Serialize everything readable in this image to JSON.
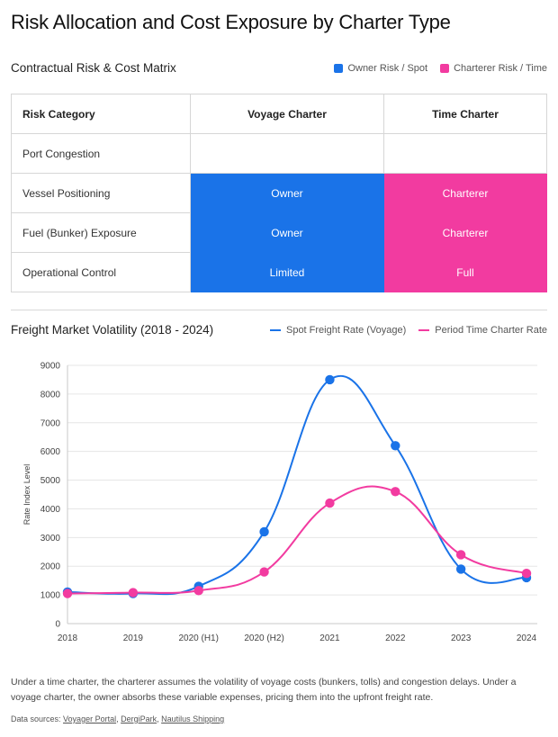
{
  "title": "Risk Allocation and Cost Exposure by Charter Type",
  "matrix": {
    "section_title": "Contractual Risk & Cost Matrix",
    "legend": [
      {
        "label": "Owner Risk / Spot",
        "color": "#1a73e8"
      },
      {
        "label": "Charterer Risk / Time",
        "color": "#f23ba0"
      }
    ],
    "headers": [
      "Risk Category",
      "Voyage Charter",
      "Time Charter"
    ],
    "rows": [
      {
        "category": "Port Congestion",
        "voyage": "",
        "time": "",
        "voyage_color": "#ffffff",
        "time_color": "#ffffff"
      },
      {
        "category": "Vessel Positioning",
        "voyage": "Owner",
        "time": "Charterer",
        "voyage_color": "#1a73e8",
        "time_color": "#f23ba0"
      },
      {
        "category": "Fuel (Bunker) Exposure",
        "voyage": "Owner",
        "time": "Charterer",
        "voyage_color": "#1a73e8",
        "time_color": "#f23ba0"
      },
      {
        "category": "Operational Control",
        "voyage": "Limited",
        "time": "Full",
        "voyage_color": "#1a73e8",
        "time_color": "#f23ba0"
      }
    ]
  },
  "chart_data": {
    "type": "line",
    "title": "Freight Market Volatility (2018 - 2024)",
    "ylabel": "Rate Index Level",
    "xlabel": "",
    "categories": [
      "2018",
      "2019",
      "2020 (H1)",
      "2020 (H2)",
      "2021",
      "2022",
      "2023",
      "2024"
    ],
    "ylim": [
      0,
      9000
    ],
    "yticks": [
      0,
      1000,
      2000,
      3000,
      4000,
      5000,
      6000,
      7000,
      8000,
      9000
    ],
    "grid": true,
    "legend_position": "top-right",
    "series": [
      {
        "name": "Spot Freight Rate (Voyage)",
        "color": "#1a73e8",
        "values": [
          1100,
          1050,
          1300,
          3200,
          8500,
          6200,
          1900,
          1600
        ]
      },
      {
        "name": "Period Time Charter Rate",
        "color": "#f23ba0",
        "values": [
          1050,
          1080,
          1150,
          1800,
          4200,
          4600,
          2400,
          1750
        ]
      }
    ]
  },
  "note": "Under a time charter, the charterer assumes the volatility of voyage costs (bunkers, tolls) and congestion delays. Under a voyage charter, the owner absorbs these variable expenses, pricing them into the upfront freight rate.",
  "sources": {
    "prefix": "Data sources:",
    "links": [
      "Voyager Portal",
      "DergiPark",
      "Nautilus Shipping"
    ]
  }
}
